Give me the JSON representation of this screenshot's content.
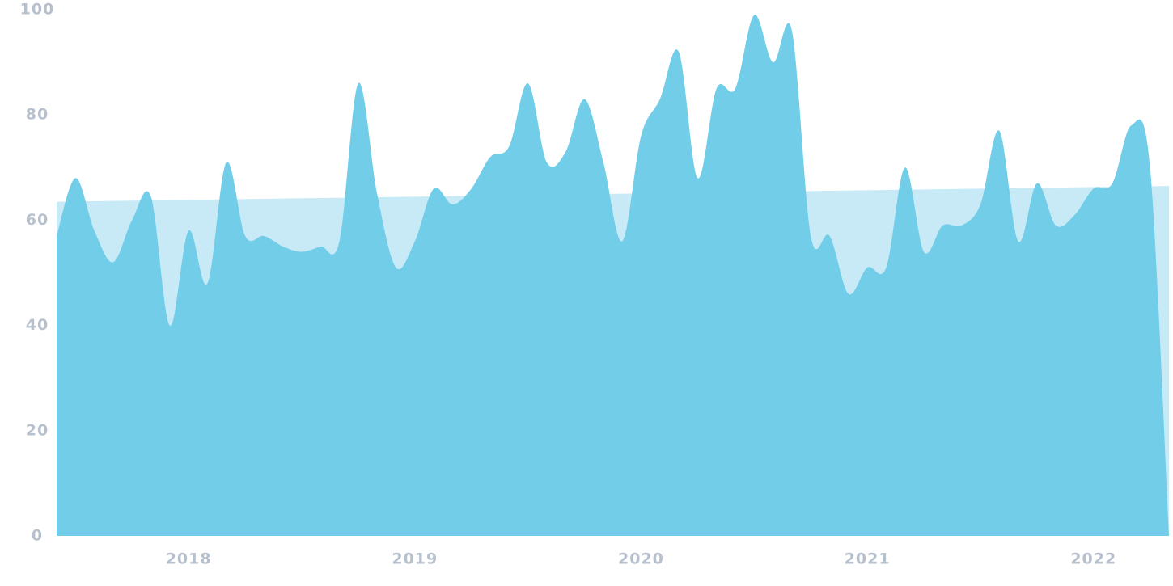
{
  "chart_data": {
    "type": "area",
    "categories": [
      null,
      null,
      null,
      null,
      null,
      null,
      null,
      "2018",
      null,
      null,
      null,
      null,
      null,
      null,
      null,
      null,
      null,
      null,
      null,
      "2019",
      null,
      null,
      null,
      null,
      null,
      null,
      null,
      null,
      null,
      null,
      null,
      "2020",
      null,
      null,
      null,
      null,
      null,
      null,
      null,
      null,
      null,
      null,
      null,
      "2021",
      null,
      null,
      null,
      null,
      null,
      null,
      null,
      null,
      null,
      null,
      null,
      "2022",
      null,
      null,
      null,
      null
    ],
    "series": [
      {
        "color": "#72cde9",
        "values": [
          57,
          68,
          58,
          52,
          60,
          64.5,
          40,
          58,
          48,
          71,
          57,
          57,
          55,
          54,
          55,
          56,
          86,
          65,
          51,
          56,
          66,
          63,
          66,
          72,
          74,
          86,
          71,
          73,
          83,
          71,
          56,
          76,
          83,
          92,
          68,
          85,
          85,
          99,
          90,
          96,
          57,
          57,
          46,
          51,
          51,
          70,
          54,
          59,
          59,
          63,
          77,
          56,
          67,
          59,
          61,
          66,
          67,
          78,
          70,
          0
        ]
      }
    ],
    "trend_line": {
      "color": "#c8eaf7",
      "values": [
        63.5,
        66.5
      ]
    },
    "ylim": [
      0,
      100
    ],
    "yticks": [
      0,
      20,
      40,
      60,
      80,
      100
    ]
  }
}
